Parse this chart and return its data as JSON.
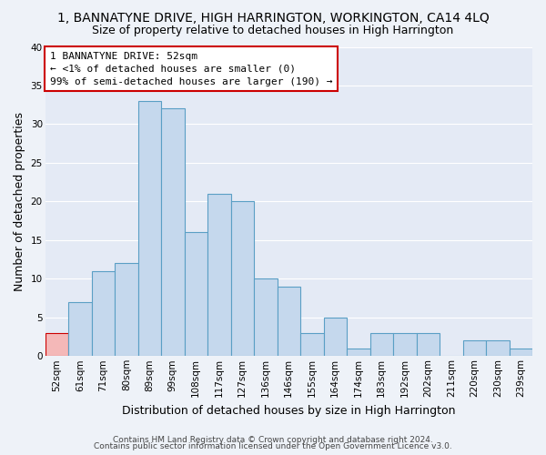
{
  "title": "1, BANNATYNE DRIVE, HIGH HARRINGTON, WORKINGTON, CA14 4LQ",
  "subtitle": "Size of property relative to detached houses in High Harrington",
  "xlabel": "Distribution of detached houses by size in High Harrington",
  "ylabel": "Number of detached properties",
  "bar_labels": [
    "52sqm",
    "61sqm",
    "71sqm",
    "80sqm",
    "89sqm",
    "99sqm",
    "108sqm",
    "117sqm",
    "127sqm",
    "136sqm",
    "146sqm",
    "155sqm",
    "164sqm",
    "174sqm",
    "183sqm",
    "192sqm",
    "202sqm",
    "211sqm",
    "220sqm",
    "230sqm",
    "239sqm"
  ],
  "bar_values": [
    3,
    7,
    11,
    12,
    33,
    32,
    16,
    21,
    20,
    10,
    9,
    3,
    5,
    1,
    3,
    3,
    3,
    0,
    2,
    2,
    1
  ],
  "bar_color": "#c5d8ed",
  "bar_edge_color": "#5a9fc5",
  "highlight_index": 0,
  "highlight_color": "#f4b8b8",
  "highlight_edge_color": "#cc0000",
  "ylim": [
    0,
    40
  ],
  "yticks": [
    0,
    5,
    10,
    15,
    20,
    25,
    30,
    35,
    40
  ],
  "annotation_line1": "1 BANNATYNE DRIVE: 52sqm",
  "annotation_line2": "← <1% of detached houses are smaller (0)",
  "annotation_line3": "99% of semi-detached houses are larger (190) →",
  "annotation_box_edge": "#cc0000",
  "footer1": "Contains HM Land Registry data © Crown copyright and database right 2024.",
  "footer2": "Contains public sector information licensed under the Open Government Licence v3.0.",
  "bg_color": "#eef2f8",
  "plot_bg_color": "#e4eaf5",
  "grid_color": "#ffffff",
  "title_fontsize": 10,
  "subtitle_fontsize": 9,
  "ylabel_fontsize": 9,
  "xlabel_fontsize": 9,
  "tick_fontsize": 7.5,
  "ann_fontsize": 8,
  "footer_fontsize": 6.5
}
